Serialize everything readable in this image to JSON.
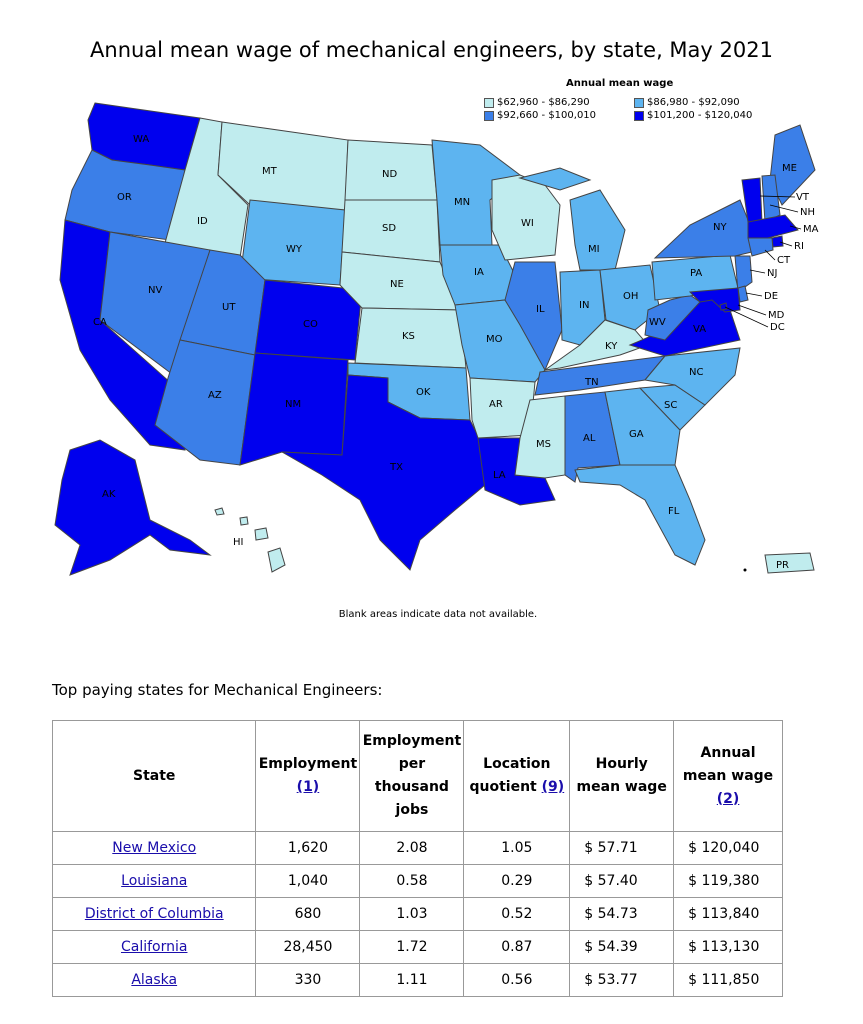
{
  "map": {
    "title": "Annual mean wage of mechanical engineers, by state, May 2021",
    "note": "Blank areas indicate data not available.",
    "legend": {
      "title": "Annual mean wage",
      "items": [
        {
          "label": "$62,960 - $86,290",
          "color": "#c0ecee"
        },
        {
          "label": "$86,980 - $92,090",
          "color": "#5db4f0"
        },
        {
          "label": "$92,660 - $100,010",
          "color": "#3b7fe8"
        },
        {
          "label": "$101,200 - $120,040",
          "color": "#0000ee"
        }
      ]
    },
    "states": [
      {
        "abbr": "WA",
        "tier": 3
      },
      {
        "abbr": "OR",
        "tier": 2
      },
      {
        "abbr": "CA",
        "tier": 3
      },
      {
        "abbr": "ID",
        "tier": 0
      },
      {
        "abbr": "NV",
        "tier": 2
      },
      {
        "abbr": "MT",
        "tier": 0
      },
      {
        "abbr": "WY",
        "tier": 1
      },
      {
        "abbr": "UT",
        "tier": 2
      },
      {
        "abbr": "AZ",
        "tier": 2
      },
      {
        "abbr": "CO",
        "tier": 3
      },
      {
        "abbr": "NM",
        "tier": 3
      },
      {
        "abbr": "ND",
        "tier": 0
      },
      {
        "abbr": "SD",
        "tier": 0
      },
      {
        "abbr": "NE",
        "tier": 0
      },
      {
        "abbr": "KS",
        "tier": 0
      },
      {
        "abbr": "OK",
        "tier": 1
      },
      {
        "abbr": "TX",
        "tier": 3
      },
      {
        "abbr": "MN",
        "tier": 1
      },
      {
        "abbr": "IA",
        "tier": 1
      },
      {
        "abbr": "MO",
        "tier": 1
      },
      {
        "abbr": "AR",
        "tier": 0
      },
      {
        "abbr": "LA",
        "tier": 3
      },
      {
        "abbr": "WI",
        "tier": 0
      },
      {
        "abbr": "IL",
        "tier": 2
      },
      {
        "abbr": "MI",
        "tier": 1
      },
      {
        "abbr": "IN",
        "tier": 1
      },
      {
        "abbr": "OH",
        "tier": 1
      },
      {
        "abbr": "KY",
        "tier": 0
      },
      {
        "abbr": "TN",
        "tier": 2
      },
      {
        "abbr": "MS",
        "tier": 0
      },
      {
        "abbr": "AL",
        "tier": 2
      },
      {
        "abbr": "GA",
        "tier": 1
      },
      {
        "abbr": "FL",
        "tier": 1
      },
      {
        "abbr": "SC",
        "tier": 1
      },
      {
        "abbr": "NC",
        "tier": 1
      },
      {
        "abbr": "VA",
        "tier": 3
      },
      {
        "abbr": "WV",
        "tier": 2
      },
      {
        "abbr": "PA",
        "tier": 1
      },
      {
        "abbr": "NY",
        "tier": 2
      },
      {
        "abbr": "ME",
        "tier": 2
      },
      {
        "abbr": "VT",
        "tier": 3
      },
      {
        "abbr": "NH",
        "tier": 2
      },
      {
        "abbr": "MA",
        "tier": 3
      },
      {
        "abbr": "RI",
        "tier": 3
      },
      {
        "abbr": "CT",
        "tier": 2
      },
      {
        "abbr": "NJ",
        "tier": 2
      },
      {
        "abbr": "DE",
        "tier": 2
      },
      {
        "abbr": "MD",
        "tier": 3
      },
      {
        "abbr": "DC",
        "tier": 3
      },
      {
        "abbr": "AK",
        "tier": 3
      },
      {
        "abbr": "HI",
        "tier": 0
      },
      {
        "abbr": "PR",
        "tier": 0
      }
    ]
  },
  "table": {
    "caption": "Top paying states for Mechanical Engineers:",
    "headers": {
      "state": "State",
      "employment": "Employment",
      "employment_ref": "(1)",
      "per_thousand_1": "Employment",
      "per_thousand_2": "per",
      "per_thousand_3": "thousand",
      "per_thousand_4": "jobs",
      "lq_1": "Location",
      "lq_2": "quotient",
      "lq_ref": "(9)",
      "hourly_1": "Hourly",
      "hourly_2": "mean wage",
      "annual_1": "Annual",
      "annual_2": "mean wage",
      "annual_ref": "(2)"
    },
    "rows": [
      {
        "state": "New Mexico",
        "employment": "1,620",
        "per_thousand": "2.08",
        "lq": "1.05",
        "hourly": "$ 57.71",
        "annual": "$ 120,040"
      },
      {
        "state": "Louisiana",
        "employment": "1,040",
        "per_thousand": "0.58",
        "lq": "0.29",
        "hourly": "$ 57.40",
        "annual": "$ 119,380"
      },
      {
        "state": "District of Columbia",
        "employment": "680",
        "per_thousand": "1.03",
        "lq": "0.52",
        "hourly": "$ 54.73",
        "annual": "$ 113,840"
      },
      {
        "state": "California",
        "employment": "28,450",
        "per_thousand": "1.72",
        "lq": "0.87",
        "hourly": "$ 54.39",
        "annual": "$ 113,130"
      },
      {
        "state": "Alaska",
        "employment": "330",
        "per_thousand": "1.11",
        "lq": "0.56",
        "hourly": "$ 53.77",
        "annual": "$ 111,850"
      }
    ]
  }
}
